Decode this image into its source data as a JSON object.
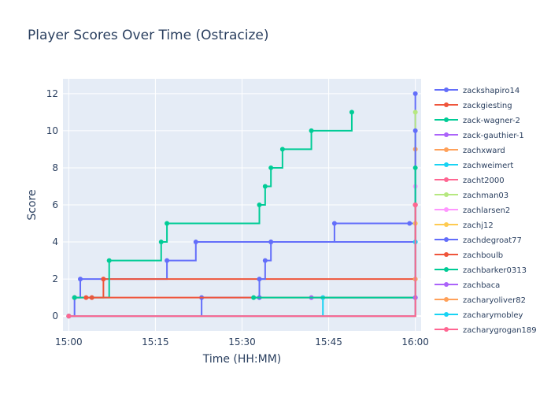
{
  "chart_data": {
    "type": "line",
    "line_shape": "step",
    "title": "Player Scores Over Time (Ostracize)",
    "xlabel": "Time (HH:MM)",
    "ylabel": "Score",
    "x_ticks": [
      "15:00",
      "15:15",
      "15:30",
      "15:45",
      "16:00"
    ],
    "x_tick_values": [
      "15:00",
      "15:15",
      "15:30",
      "15:45",
      "16:00"
    ],
    "y_ticks": [
      0,
      2,
      4,
      6,
      8,
      10,
      12
    ],
    "xlim": [
      "14:59",
      "16:01"
    ],
    "ylim": [
      -0.8,
      12.8
    ],
    "grid": true,
    "legend_position": "right",
    "series": [
      {
        "name": "zackshapiro14",
        "color": "#636efa",
        "points": [
          [
            "15:00",
            0
          ],
          [
            "15:01",
            1
          ],
          [
            "15:02",
            2
          ],
          [
            "15:17",
            3
          ],
          [
            "15:22",
            4
          ],
          [
            "15:35",
            4
          ],
          [
            "15:46",
            5
          ],
          [
            "15:59",
            5
          ],
          [
            "16:00",
            12
          ]
        ]
      },
      {
        "name": "zackgiesting",
        "color": "#ef553b",
        "points": [
          [
            "15:01",
            1
          ],
          [
            "15:04",
            1
          ],
          [
            "15:06",
            2
          ],
          [
            "16:00",
            6
          ]
        ]
      },
      {
        "name": "zack-wagner-2",
        "color": "#00cc96",
        "points": [
          [
            "15:01",
            1
          ],
          [
            "15:07",
            3
          ],
          [
            "15:16",
            4
          ],
          [
            "15:17",
            5
          ],
          [
            "15:33",
            6
          ],
          [
            "15:34",
            7
          ],
          [
            "15:35",
            8
          ],
          [
            "15:37",
            9
          ],
          [
            "15:42",
            10
          ],
          [
            "15:49",
            11
          ]
        ]
      },
      {
        "name": "zack-gauthier-1",
        "color": "#ab63fa",
        "points": [
          [
            "15:42",
            1
          ],
          [
            "16:00",
            6
          ]
        ]
      },
      {
        "name": "zachxward",
        "color": "#ffa15a",
        "points": [
          [
            "15:00",
            0
          ],
          [
            "16:00",
            9
          ]
        ]
      },
      {
        "name": "zachweimert",
        "color": "#19d3f3",
        "points": [
          [
            "15:00",
            0
          ],
          [
            "15:44",
            1
          ],
          [
            "16:00",
            1
          ]
        ]
      },
      {
        "name": "zacht2000",
        "color": "#ff6692",
        "points": [
          [
            "15:00",
            0
          ],
          [
            "16:00",
            6
          ]
        ]
      },
      {
        "name": "zachman03",
        "color": "#b6e880",
        "points": [
          [
            "15:00",
            0
          ],
          [
            "16:00",
            11
          ]
        ]
      },
      {
        "name": "zachlarsen2",
        "color": "#ff97ff",
        "points": [
          [
            "15:00",
            0
          ],
          [
            "16:00",
            7
          ]
        ]
      },
      {
        "name": "zachj12",
        "color": "#fecb52",
        "points": [
          [
            "15:00",
            0
          ],
          [
            "16:00",
            5
          ]
        ]
      },
      {
        "name": "zachdegroat77",
        "color": "#636efa",
        "points": [
          [
            "15:00",
            0
          ],
          [
            "15:23",
            1
          ],
          [
            "15:33",
            1
          ],
          [
            "15:33",
            2
          ],
          [
            "15:34",
            3
          ],
          [
            "15:35",
            4
          ],
          [
            "16:00",
            10
          ]
        ]
      },
      {
        "name": "zachboulb",
        "color": "#ef553b",
        "points": [
          [
            "15:03",
            1
          ],
          [
            "16:00",
            6
          ]
        ]
      },
      {
        "name": "zachbarker0313",
        "color": "#00cc96",
        "points": [
          [
            "15:32",
            1
          ],
          [
            "16:00",
            8
          ]
        ]
      },
      {
        "name": "zachbaca",
        "color": "#ab63fa",
        "points": [
          [
            "15:00",
            0
          ],
          [
            "16:00",
            1
          ]
        ]
      },
      {
        "name": "zacharyoliver82",
        "color": "#ffa15a",
        "points": [
          [
            "15:00",
            0
          ],
          [
            "16:00",
            2
          ]
        ]
      },
      {
        "name": "zacharymobley",
        "color": "#19d3f3",
        "points": [
          [
            "15:00",
            0
          ],
          [
            "16:00",
            4
          ]
        ]
      },
      {
        "name": "zacharygrogan189",
        "color": "#ff6692",
        "points": [
          [
            "15:00",
            0
          ],
          [
            "16:00",
            6
          ]
        ]
      }
    ]
  }
}
